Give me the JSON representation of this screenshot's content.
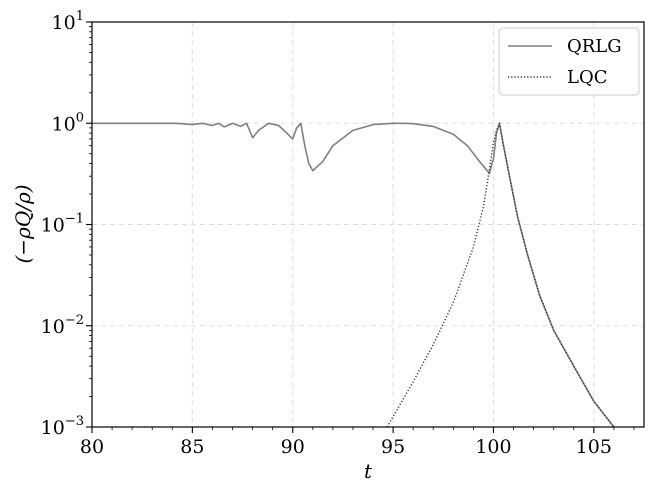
{
  "chart_data": {
    "type": "line",
    "xlabel": "t",
    "ylabel": "(−ρQ/ρ)",
    "xlim": [
      80,
      107.5
    ],
    "ylim": [
      0.001,
      10
    ],
    "yscale": "log",
    "grid": true,
    "legend_position": "top-right",
    "x_ticks": [
      80,
      85,
      90,
      95,
      100,
      105
    ],
    "x_tick_labels": [
      "80",
      "85",
      "90",
      "95",
      "100",
      "105"
    ],
    "y_ticks": [
      {
        "value": 0.001,
        "base": "10",
        "exp": "−3"
      },
      {
        "value": 0.01,
        "base": "10",
        "exp": "−2"
      },
      {
        "value": 0.1,
        "base": "10",
        "exp": "−1"
      },
      {
        "value": 1,
        "base": "10",
        "exp": "0"
      },
      {
        "value": 10,
        "base": "10",
        "exp": "1"
      }
    ],
    "series": [
      {
        "name": "QRLG",
        "color": "#808080",
        "style": "solid",
        "x": [
          80,
          84,
          84.5,
          85,
          85.5,
          86,
          86.3,
          86.6,
          87,
          87.4,
          87.7,
          88,
          88.3,
          88.8,
          89.3,
          89.7,
          90,
          90.2,
          90.4,
          90.6,
          90.8,
          91,
          91.5,
          92,
          93,
          94,
          95,
          95.5,
          96,
          97,
          98,
          98.7,
          99.3,
          99.8,
          100.0,
          100.15,
          100.3,
          100.5,
          100.8,
          101.2,
          101.7,
          102.3,
          103,
          104,
          105,
          106
        ],
        "y": [
          1,
          1,
          0.99,
          0.97,
          1,
          0.95,
          1,
          0.92,
          1,
          0.93,
          1,
          0.72,
          0.85,
          1,
          0.95,
          0.8,
          0.7,
          0.9,
          1,
          0.6,
          0.4,
          0.34,
          0.42,
          0.6,
          0.85,
          0.97,
          1,
          1,
          0.99,
          0.93,
          0.78,
          0.6,
          0.42,
          0.32,
          0.45,
          0.8,
          1,
          0.6,
          0.3,
          0.12,
          0.05,
          0.02,
          0.009,
          0.004,
          0.0018,
          0.001
        ]
      },
      {
        "name": "LQC",
        "color": "#303030",
        "style": "dotted",
        "x": [
          94.7,
          96,
          97,
          98,
          99,
          99.5,
          99.8,
          100.0,
          100.15,
          100.3,
          100.5,
          100.8,
          101.2,
          101.7,
          102.3,
          103,
          104,
          105,
          106
        ],
        "y": [
          0.001,
          0.0028,
          0.0065,
          0.017,
          0.06,
          0.15,
          0.35,
          0.65,
          0.85,
          1,
          0.6,
          0.3,
          0.12,
          0.05,
          0.02,
          0.009,
          0.004,
          0.0018,
          0.001
        ]
      }
    ]
  }
}
